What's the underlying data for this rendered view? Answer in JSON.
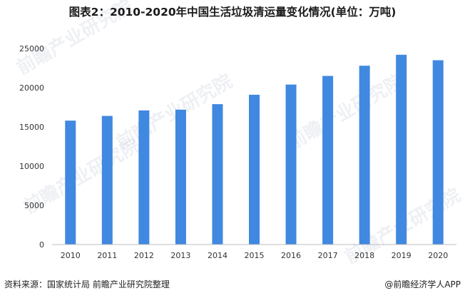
{
  "chart_data": {
    "type": "bar",
    "title": "图表2：2010-2020年中国生活垃圾清运量变化情况(单位：万吨)",
    "categories": [
      "2010",
      "2011",
      "2012",
      "2013",
      "2014",
      "2015",
      "2016",
      "2017",
      "2018",
      "2019",
      "2020"
    ],
    "values": [
      15800,
      16400,
      17100,
      17200,
      17900,
      19100,
      20400,
      21500,
      22800,
      24200,
      23500
    ],
    "ylim": [
      0,
      25000
    ],
    "yticks": [
      "0",
      "5000",
      "10000",
      "15000",
      "20000",
      "25000"
    ],
    "xlabel": "",
    "ylabel": "",
    "bar_color": "#4088E0",
    "grid": false,
    "legend": "none"
  },
  "footer": {
    "source": "资料来源：国家统计局 前瞻产业研究院整理",
    "brand": "@前瞻经济学人APP"
  },
  "watermark": {
    "text": "前瞻产业研究院"
  }
}
